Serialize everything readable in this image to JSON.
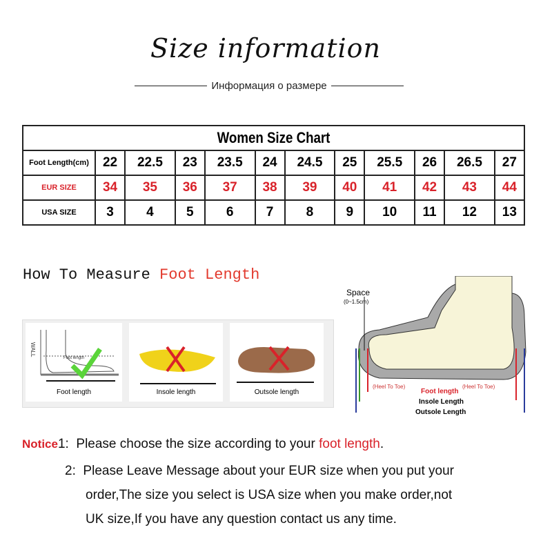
{
  "title": "Size information",
  "subtitle": "Информация о размере",
  "chart": {
    "title": "Women Size Chart",
    "rows": [
      {
        "label": "Foot Length(cm)",
        "values": [
          "22",
          "22.5",
          "23",
          "23.5",
          "24",
          "24.5",
          "25",
          "25.5",
          "26",
          "26.5",
          "27"
        ]
      },
      {
        "label": "EUR SIZE",
        "values": [
          "34",
          "35",
          "36",
          "37",
          "38",
          "39",
          "40",
          "41",
          "42",
          "43",
          "44"
        ]
      },
      {
        "label": "USA SIZE",
        "values": [
          "3",
          "4",
          "5",
          "6",
          "7",
          "8",
          "9",
          "10",
          "11",
          "12",
          "13"
        ]
      }
    ]
  },
  "measure": {
    "prefix": "How To Measure ",
    "highlight": "Foot Length"
  },
  "methods": [
    {
      "caption": "Foot length",
      "mark": "check-icon",
      "wall": "WALL",
      "inner": "Foot length"
    },
    {
      "caption": "Insole length",
      "mark": "cross-icon"
    },
    {
      "caption": "Outsole length",
      "mark": "cross-icon"
    }
  ],
  "diagram": {
    "space": "Space",
    "space_range": "(0~1.5cm)",
    "heel_to_toe": "(Heel To Toe)",
    "foot_length": "Foot length",
    "insole": "Insole Length",
    "outsole": "Outsole Length"
  },
  "notice": {
    "label": "Notice",
    "n1": "1:",
    "line1_prefix": "Please choose the size according to your ",
    "line1_highlight": "foot length",
    "line1_suffix": ".",
    "n2": "2:",
    "line2": "Please Leave Message about your EUR size when you put your",
    "line3": "order,The size you select is USA size when you make order,not",
    "line4": "UK size,If you have any question  contact us any time."
  },
  "colors": {
    "accent": "#d9222a",
    "check": "#5ad43a"
  }
}
